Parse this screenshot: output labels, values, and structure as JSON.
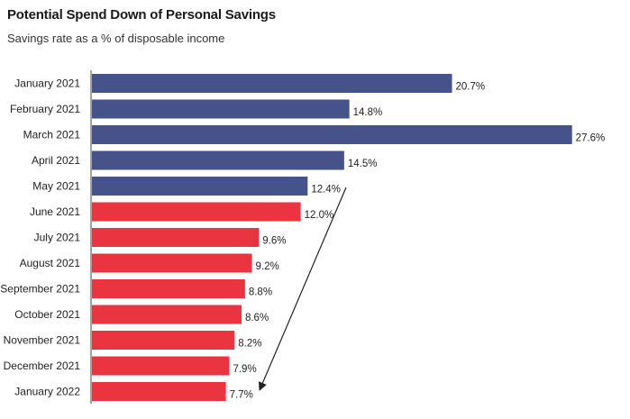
{
  "header": {
    "title": "Potential Spend Down of Personal Savings",
    "subtitle": "Savings rate as a % of disposable income"
  },
  "colors": {
    "actual": "#46528a",
    "decline": "#ea3540",
    "axis": "#444444",
    "arrow": "#222222"
  },
  "chart_data": {
    "type": "bar",
    "orientation": "horizontal",
    "title": "Potential Spend Down of Personal Savings",
    "subtitle": "Savings rate as a % of disposable income",
    "xlabel": "",
    "ylabel": "",
    "xlim": [
      0,
      28
    ],
    "grid": false,
    "categories": [
      "January 2021",
      "February 2021",
      "March 2021",
      "April 2021",
      "May 2021",
      "June 2021",
      "July 2021",
      "August 2021",
      "September 2021",
      "October 2021",
      "November 2021",
      "December 2021",
      "January 2022"
    ],
    "values": [
      20.7,
      14.8,
      27.6,
      14.5,
      12.4,
      12.0,
      9.6,
      9.2,
      8.8,
      8.6,
      8.2,
      7.9,
      7.7
    ],
    "value_labels": [
      "20.7%",
      "14.8%",
      "27.6%",
      "14.5%",
      "12.4%",
      "12.0%",
      "9.6%",
      "9.2%",
      "8.8%",
      "8.6%",
      "8.2%",
      "7.9%",
      "7.7%"
    ],
    "bar_groups": [
      "actual",
      "actual",
      "actual",
      "actual",
      "actual",
      "decline",
      "decline",
      "decline",
      "decline",
      "decline",
      "decline",
      "decline",
      "decline"
    ],
    "annotation": "downward-arrow"
  }
}
